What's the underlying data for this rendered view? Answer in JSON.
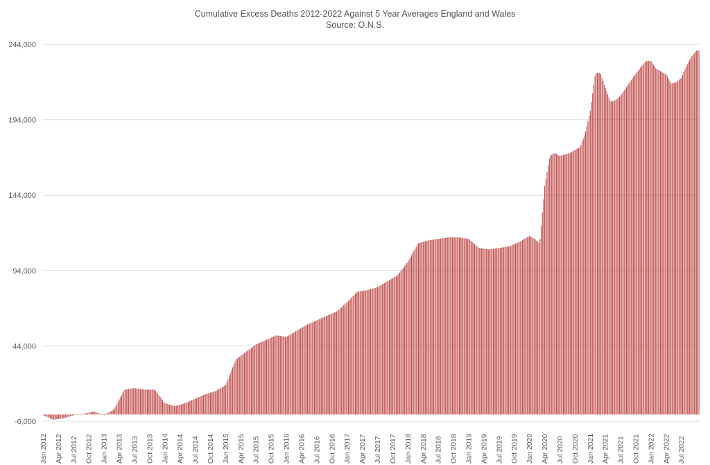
{
  "chart_data": {
    "type": "bar",
    "title": "Cumulative Excess Deaths 2012-2022 Against 5 Year Averages England and Wales",
    "subtitle": "Source: O.N.S.",
    "xlabel": "",
    "ylabel": "",
    "ylim": [
      -6000,
      244000
    ],
    "y_ticks": [
      "244,000",
      "194,000",
      "144,000",
      "94,000",
      "44,000",
      "-6,000"
    ],
    "y_tick_values": [
      244000,
      194000,
      144000,
      94000,
      44000,
      -6000
    ],
    "x_tick_labels": [
      "Jan 2012",
      "Apr 2012",
      "Jul 2012",
      "Oct 2012",
      "Jan 2013",
      "Apr 2013",
      "Jul 2013",
      "Oct 2013",
      "Jan 2014",
      "Apr 2014",
      "Jul 2014",
      "Oct 2014",
      "Jan 2015",
      "Apr 2015",
      "Jul 2015",
      "Oct 2015",
      "Jan 2016",
      "Apr 2016",
      "Jul 2016",
      "Oct 2016",
      "Jan 2017",
      "Apr 2017",
      "Jul 2017",
      "Oct 2017",
      "Jan 2018",
      "Apr 2018",
      "Jul 2018",
      "Oct 2018",
      "Jan 2019",
      "Apr 2019",
      "Jul 2019",
      "Oct 2019",
      "Jan 2020",
      "Apr 2020",
      "Jul 2020",
      "Oct 2020",
      "Jan 2021",
      "Apr 2021",
      "Jul 2021",
      "Oct 2021",
      "Jan 2022",
      "Apr 2022",
      "Jul 2022"
    ],
    "grid": true,
    "legend": "none",
    "bar_color": "#c0504d",
    "series": [
      {
        "x": [
          "2012-01",
          "2012-03",
          "2012-05",
          "2012-07",
          "2012-09",
          "2012-11",
          "2013-01",
          "2013-03",
          "2013-05",
          "2013-07",
          "2013-09",
          "2013-11",
          "2014-01",
          "2014-03",
          "2014-05",
          "2014-07",
          "2014-09",
          "2014-11",
          "2015-01",
          "2015-03",
          "2015-05",
          "2015-07",
          "2015-09",
          "2015-11",
          "2016-01",
          "2016-03",
          "2016-05",
          "2016-07",
          "2016-09",
          "2016-11",
          "2017-01",
          "2017-03",
          "2017-05",
          "2017-07",
          "2017-09",
          "2017-11",
          "2018-01",
          "2018-03",
          "2018-05",
          "2018-07",
          "2018-09",
          "2018-11",
          "2019-01",
          "2019-03",
          "2019-05",
          "2019-07",
          "2019-09",
          "2019-11",
          "2020-01",
          "2020-02",
          "2020-03",
          "2020-04",
          "2020-05",
          "2020-06",
          "2020-07",
          "2020-09",
          "2020-11",
          "2020-12",
          "2021-01",
          "2021-02",
          "2021-03",
          "2021-04",
          "2021-05",
          "2021-06",
          "2021-07",
          "2021-09",
          "2021-11",
          "2021-12",
          "2022-01",
          "2022-02",
          "2022-03",
          "2022-04",
          "2022-05",
          "2022-06",
          "2022-07",
          "2022-08",
          "2022-09",
          "2022-10"
        ],
        "values": [
          -2000,
          -5000,
          -4000,
          -2000,
          -1000,
          500,
          -2000,
          2000,
          15000,
          16000,
          15000,
          15000,
          6000,
          4000,
          6000,
          9000,
          12000,
          14000,
          18000,
          35000,
          40000,
          45000,
          48000,
          51000,
          50000,
          54000,
          58000,
          61000,
          64000,
          67000,
          73000,
          80000,
          81000,
          83000,
          87000,
          91000,
          100000,
          112000,
          114000,
          115000,
          116000,
          116000,
          115000,
          109000,
          108000,
          109000,
          110000,
          113000,
          117000,
          115000,
          112000,
          150000,
          170000,
          172000,
          170000,
          172000,
          176000,
          185000,
          200000,
          225000,
          225000,
          215000,
          206000,
          207000,
          210000,
          220000,
          229000,
          233000,
          233000,
          228000,
          226000,
          224000,
          218000,
          219000,
          222000,
          230000,
          236000,
          240000
        ]
      }
    ]
  }
}
